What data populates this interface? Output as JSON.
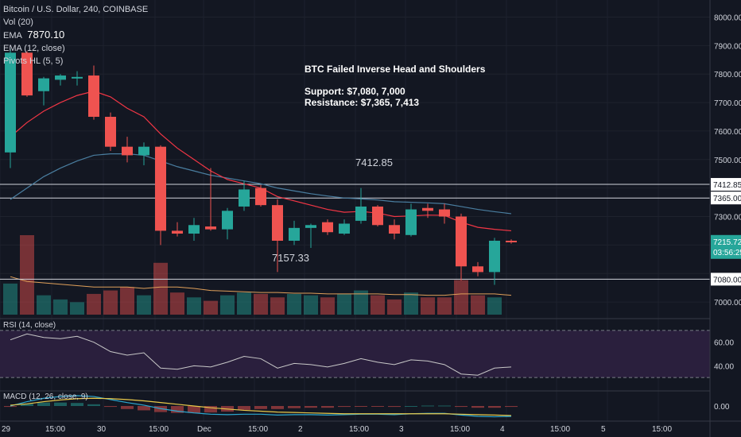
{
  "header": {
    "symbol": "Bitcoin / U.S. Dollar, 240, COINBASE",
    "vol": "Vol (20)",
    "ema1": "EMA",
    "ema1_value": "7870.10",
    "ema2": "EMA (12, close)",
    "pivots": "Pivots HL (5, 5)"
  },
  "annotation": {
    "title": "BTC Failed Inverse Head and Shoulders",
    "support": "Support: $7,080, 7,000",
    "resistance": "Resistance: $7,365, 7,413"
  },
  "pivot_labels": {
    "high": "7412.85",
    "low": "7157.33"
  },
  "price_axis": {
    "ticks": [
      "8000.00",
      "7900.00",
      "7800.00",
      "7700.00",
      "7600.00",
      "7500.00",
      "7300.00",
      "7000.00"
    ],
    "level_labels": [
      "7412.85",
      "7365.00",
      "7080.00"
    ],
    "last_price": "7215.72",
    "countdown": "03:56:25"
  },
  "time_axis": [
    "29",
    "15:00",
    "30",
    "15:00",
    "Dec",
    "15:00",
    "2",
    "15:00",
    "3",
    "15:00",
    "4",
    "15:00",
    "5",
    "15:00"
  ],
  "rsi": {
    "label": "RSI (14, close)",
    "ticks": [
      "60.00",
      "40.00"
    ]
  },
  "macd": {
    "label": "MACD (12, 26, close, 9)",
    "ticks": [
      "0.00"
    ]
  },
  "colors": {
    "bg": "#131722",
    "up": "#26a69a",
    "down": "#ef5350",
    "ema_fast": "#f23645",
    "ema_slow": "#4a7ea0",
    "rsi_band": "#2a1f3d",
    "rsi_line": "#c8c8c8",
    "signal": "#e8c84a"
  },
  "chart_data": {
    "type": "candlestick",
    "title": "Bitcoin / U.S. Dollar, 240, COINBASE",
    "ylim": [
      6950,
      8060
    ],
    "horizontal_levels": [
      7412.85,
      7365,
      7080
    ],
    "candles": [
      {
        "o": 7525,
        "h": 7890,
        "l": 7470,
        "c": 7875
      },
      {
        "o": 7875,
        "h": 7880,
        "l": 7720,
        "c": 7725
      },
      {
        "o": 7740,
        "h": 7790,
        "l": 7690,
        "c": 7785
      },
      {
        "o": 7780,
        "h": 7800,
        "l": 7760,
        "c": 7795
      },
      {
        "o": 7785,
        "h": 7810,
        "l": 7760,
        "c": 7790
      },
      {
        "o": 7795,
        "h": 7830,
        "l": 7640,
        "c": 7650
      },
      {
        "o": 7650,
        "h": 7665,
        "l": 7530,
        "c": 7545
      },
      {
        "o": 7545,
        "h": 7580,
        "l": 7490,
        "c": 7515
      },
      {
        "o": 7515,
        "h": 7560,
        "l": 7480,
        "c": 7545
      },
      {
        "o": 7545,
        "h": 7550,
        "l": 7200,
        "c": 7250
      },
      {
        "o": 7250,
        "h": 7280,
        "l": 7230,
        "c": 7240
      },
      {
        "o": 7240,
        "h": 7295,
        "l": 7215,
        "c": 7270
      },
      {
        "o": 7265,
        "h": 7470,
        "l": 7250,
        "c": 7255
      },
      {
        "o": 7255,
        "h": 7330,
        "l": 7220,
        "c": 7320
      },
      {
        "o": 7335,
        "h": 7425,
        "l": 7320,
        "c": 7395
      },
      {
        "o": 7400,
        "h": 7410,
        "l": 7335,
        "c": 7340
      },
      {
        "o": 7340,
        "h": 7360,
        "l": 7105,
        "c": 7215
      },
      {
        "o": 7215,
        "h": 7285,
        "l": 7200,
        "c": 7260
      },
      {
        "o": 7260,
        "h": 7275,
        "l": 7190,
        "c": 7270
      },
      {
        "o": 7280,
        "h": 7290,
        "l": 7235,
        "c": 7245
      },
      {
        "o": 7240,
        "h": 7290,
        "l": 7235,
        "c": 7275
      },
      {
        "o": 7285,
        "h": 7400,
        "l": 7275,
        "c": 7335
      },
      {
        "o": 7335,
        "h": 7340,
        "l": 7265,
        "c": 7270
      },
      {
        "o": 7270,
        "h": 7290,
        "l": 7220,
        "c": 7240
      },
      {
        "o": 7235,
        "h": 7345,
        "l": 7230,
        "c": 7325
      },
      {
        "o": 7330,
        "h": 7345,
        "l": 7295,
        "c": 7320
      },
      {
        "o": 7325,
        "h": 7345,
        "l": 7275,
        "c": 7300
      },
      {
        "o": 7300,
        "h": 7310,
        "l": 7075,
        "c": 7125
      },
      {
        "o": 7125,
        "h": 7140,
        "l": 7090,
        "c": 7105
      },
      {
        "o": 7105,
        "h": 7225,
        "l": 7060,
        "c": 7215
      },
      {
        "o": 7215,
        "h": 7220,
        "l": 7205,
        "c": 7210
      }
    ],
    "volume": [
      45,
      115,
      28,
      22,
      18,
      30,
      35,
      40,
      28,
      75,
      32,
      25,
      20,
      28,
      32,
      30,
      25,
      30,
      28,
      25,
      30,
      35,
      28,
      22,
      32,
      25,
      25,
      50,
      28,
      25,
      0
    ],
    "ema_fast": [
      7580,
      7630,
      7670,
      7700,
      7725,
      7740,
      7720,
      7680,
      7650,
      7590,
      7540,
      7500,
      7460,
      7430,
      7415,
      7400,
      7370,
      7355,
      7340,
      7325,
      7315,
      7318,
      7312,
      7300,
      7302,
      7305,
      7304,
      7280,
      7262,
      7255,
      7250
    ],
    "ema_slow": [
      7360,
      7400,
      7440,
      7470,
      7495,
      7515,
      7520,
      7520,
      7515,
      7495,
      7475,
      7460,
      7445,
      7435,
      7425,
      7415,
      7400,
      7390,
      7380,
      7372,
      7365,
      7362,
      7358,
      7352,
      7350,
      7348,
      7345,
      7335,
      7325,
      7317,
      7310
    ],
    "rsi_ylim": [
      20,
      80
    ],
    "rsi": [
      62,
      67,
      64,
      63,
      65,
      60,
      52,
      49,
      51,
      38,
      37,
      40,
      39,
      43,
      48,
      46,
      38,
      42,
      41,
      39,
      42,
      46,
      43,
      41,
      45,
      44,
      41,
      33,
      32,
      38,
      39
    ],
    "macd_ylim": [
      -35,
      35
    ],
    "macd": [
      0,
      10,
      18,
      22,
      24,
      22,
      15,
      8,
      2,
      -6,
      -12,
      -16,
      -19,
      -20,
      -19,
      -19,
      -21,
      -20,
      -20,
      -21,
      -20,
      -19,
      -19,
      -20,
      -18,
      -17,
      -17,
      -21,
      -24,
      -25,
      -24
    ],
    "signal": [
      2,
      5,
      10,
      14,
      17,
      18,
      17,
      15,
      12,
      8,
      4,
      0,
      -4,
      -7,
      -10,
      -12,
      -14,
      -15,
      -16,
      -17,
      -18,
      -18,
      -18,
      -18,
      -18,
      -18,
      -18,
      -19,
      -20,
      -21,
      -22
    ]
  }
}
